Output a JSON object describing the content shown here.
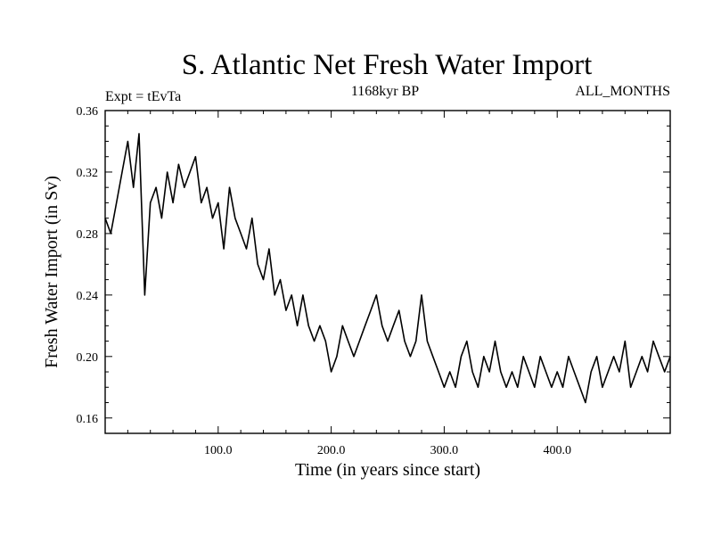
{
  "chart_data": {
    "type": "line",
    "title": "S. Atlantic Net Fresh Water Import",
    "subtitle_left": "Expt = tEvTa",
    "subtitle_center": "1168kyr BP",
    "subtitle_right": "ALL_MONTHS",
    "xlabel": "Time (in years since start)",
    "ylabel": "Fresh Water Import (in Sv)",
    "xlim": [
      0,
      500
    ],
    "ylim": [
      0.15,
      0.36
    ],
    "x_ticks": [
      100,
      200,
      300,
      400
    ],
    "x_tick_labels": [
      "100.0",
      "200.0",
      "300.0",
      "400.0"
    ],
    "y_ticks": [
      0.16,
      0.2,
      0.24,
      0.28,
      0.32,
      0.36
    ],
    "y_tick_labels": [
      "0.16",
      "0.20",
      "0.24",
      "0.28",
      "0.32",
      "0.36"
    ],
    "grid": false,
    "series": [
      {
        "name": "S. Atlantic Net Fresh Water Import",
        "x": [
          0,
          5,
          10,
          15,
          20,
          25,
          30,
          35,
          40,
          45,
          50,
          55,
          60,
          65,
          70,
          75,
          80,
          85,
          90,
          95,
          100,
          105,
          110,
          115,
          120,
          125,
          130,
          135,
          140,
          145,
          150,
          155,
          160,
          165,
          170,
          175,
          180,
          185,
          190,
          195,
          200,
          205,
          210,
          215,
          220,
          225,
          230,
          235,
          240,
          245,
          250,
          255,
          260,
          265,
          270,
          275,
          280,
          285,
          290,
          295,
          300,
          305,
          310,
          315,
          320,
          325,
          330,
          335,
          340,
          345,
          350,
          355,
          360,
          365,
          370,
          375,
          380,
          385,
          390,
          395,
          400,
          405,
          410,
          415,
          420,
          425,
          430,
          435,
          440,
          445,
          450,
          455,
          460,
          465,
          470,
          475,
          480,
          485,
          490,
          495,
          500
        ],
        "values": [
          0.29,
          0.28,
          0.3,
          0.32,
          0.34,
          0.31,
          0.345,
          0.24,
          0.3,
          0.31,
          0.29,
          0.32,
          0.3,
          0.325,
          0.31,
          0.32,
          0.33,
          0.3,
          0.31,
          0.29,
          0.3,
          0.27,
          0.31,
          0.29,
          0.28,
          0.27,
          0.29,
          0.26,
          0.25,
          0.27,
          0.24,
          0.25,
          0.23,
          0.24,
          0.22,
          0.24,
          0.22,
          0.21,
          0.22,
          0.21,
          0.19,
          0.2,
          0.22,
          0.21,
          0.2,
          0.21,
          0.22,
          0.23,
          0.24,
          0.22,
          0.21,
          0.22,
          0.23,
          0.21,
          0.2,
          0.21,
          0.24,
          0.21,
          0.2,
          0.19,
          0.18,
          0.19,
          0.18,
          0.2,
          0.21,
          0.19,
          0.18,
          0.2,
          0.19,
          0.21,
          0.19,
          0.18,
          0.19,
          0.18,
          0.2,
          0.19,
          0.18,
          0.2,
          0.19,
          0.18,
          0.19,
          0.18,
          0.2,
          0.19,
          0.18,
          0.17,
          0.19,
          0.2,
          0.18,
          0.19,
          0.2,
          0.19,
          0.21,
          0.18,
          0.19,
          0.2,
          0.19,
          0.21,
          0.2,
          0.19,
          0.2
        ]
      }
    ]
  }
}
